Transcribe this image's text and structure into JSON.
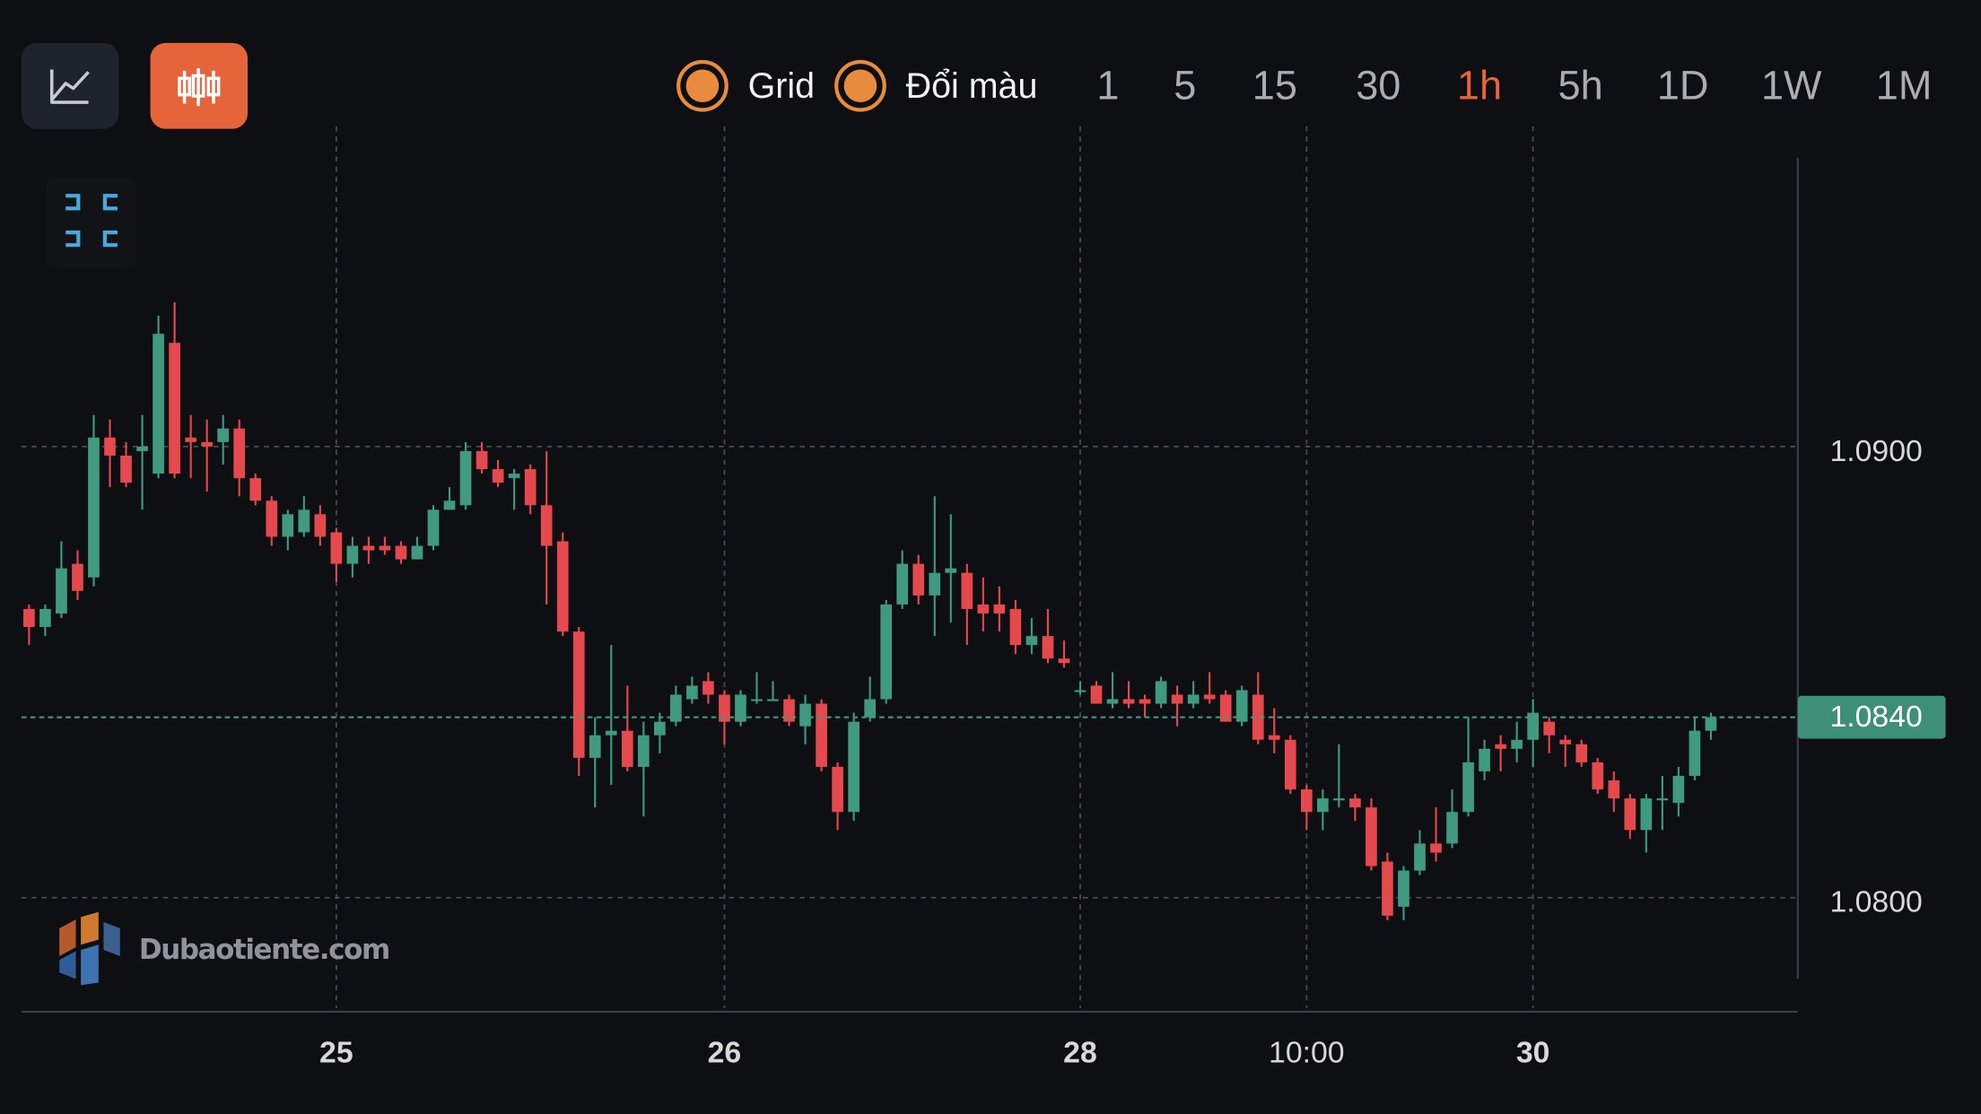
{
  "toolbar": {
    "toggles": [
      "Grid",
      "Đổi màu"
    ],
    "timeframes": [
      "1",
      "5",
      "15",
      "30",
      "1h",
      "5h",
      "1D",
      "1W",
      "1M"
    ],
    "active_timeframe": "1h"
  },
  "watermark": "Dubaotiente.com",
  "chart_data": {
    "type": "candlestick",
    "categories": [
      null,
      null,
      null,
      null,
      null,
      null,
      null,
      null,
      null,
      null,
      null,
      null,
      null,
      null,
      null,
      null,
      null,
      null,
      null,
      "25",
      null,
      null,
      null,
      null,
      null,
      null,
      null,
      null,
      null,
      null,
      null,
      null,
      null,
      null,
      null,
      null,
      null,
      null,
      null,
      null,
      null,
      null,
      null,
      "26",
      null,
      null,
      null,
      null,
      null,
      null,
      null,
      null,
      null,
      null,
      null,
      null,
      null,
      null,
      null,
      null,
      null,
      null,
      null,
      null,
      null,
      "28",
      null,
      null,
      null,
      null,
      null,
      null,
      null,
      null,
      null,
      null,
      null,
      null,
      null,
      "10:00",
      null,
      null,
      null,
      null,
      null,
      null,
      null,
      null,
      null,
      null,
      null,
      null,
      null,
      "30",
      null,
      null,
      null,
      null,
      null,
      null,
      null,
      null,
      null,
      null,
      null
    ],
    "open": [
      1.0864,
      1.086,
      1.0863,
      1.0874,
      1.0871,
      1.0902,
      1.0898,
      1.0899,
      1.0894,
      1.0923,
      1.0902,
      1.0901,
      1.0901,
      1.0904,
      1.0893,
      1.0888,
      1.088,
      1.0881,
      1.0885,
      1.0881,
      1.0874,
      1.0878,
      1.0878,
      1.0878,
      1.0875,
      1.0878,
      1.0886,
      1.0887,
      1.0899,
      1.0895,
      1.0893,
      1.0895,
      1.0887,
      1.0879,
      1.0859,
      1.0831,
      1.0836,
      1.0837,
      1.0829,
      1.0836,
      1.0839,
      1.0844,
      1.0848,
      1.0845,
      1.0839,
      1.0844,
      1.0844,
      1.0844,
      1.0838,
      1.0843,
      1.0829,
      1.0819,
      1.084,
      1.0844,
      1.0865,
      1.0874,
      1.0867,
      1.0872,
      1.0872,
      1.0865,
      1.0865,
      1.0864,
      1.0856,
      1.0858,
      1.0853,
      1.0846,
      1.0847,
      1.0843,
      1.0844,
      1.0844,
      1.0843,
      1.0845,
      1.0843,
      1.0845,
      1.0845,
      1.0839,
      1.0845,
      1.0836,
      1.0835,
      1.0824,
      1.0819,
      1.0822,
      1.0822,
      1.082,
      1.0808,
      1.0798,
      1.0806,
      1.0812,
      1.0812,
      1.0819,
      1.0828,
      1.0834,
      1.0833,
      1.0835,
      1.0839,
      1.0835,
      1.0834,
      1.083,
      1.0826,
      1.0822,
      1.0815,
      1.0822,
      1.0821,
      1.0827,
      1.0837
    ],
    "high": [
      1.0865,
      1.0865,
      1.0879,
      1.0877,
      1.0907,
      1.0906,
      1.0901,
      1.0907,
      1.0929,
      1.0932,
      1.0907,
      1.0906,
      1.0907,
      1.0906,
      1.0894,
      1.0889,
      1.0886,
      1.0889,
      1.0887,
      1.0882,
      1.088,
      1.088,
      1.088,
      1.0879,
      1.088,
      1.0887,
      1.0891,
      1.0901,
      1.0901,
      1.0897,
      1.0895,
      1.0896,
      1.0899,
      1.0881,
      1.086,
      1.084,
      1.0856,
      1.0847,
      1.0839,
      1.0841,
      1.0847,
      1.0849,
      1.085,
      1.0846,
      1.0846,
      1.085,
      1.0848,
      1.0845,
      1.0845,
      1.0844,
      1.083,
      1.0841,
      1.0849,
      1.0866,
      1.0877,
      1.0876,
      1.0889,
      1.0885,
      1.0874,
      1.0871,
      1.0869,
      1.0866,
      1.0862,
      1.0864,
      1.0857,
      1.0848,
      1.0848,
      1.085,
      1.0848,
      1.0845,
      1.0849,
      1.0847,
      1.0848,
      1.085,
      1.0846,
      1.0847,
      1.085,
      1.0842,
      1.0836,
      1.0825,
      1.0824,
      1.0834,
      1.0823,
      1.0822,
      1.081,
      1.0807,
      1.0815,
      1.082,
      1.0824,
      1.084,
      1.0835,
      1.0836,
      1.0839,
      1.0844,
      1.084,
      1.0836,
      1.0835,
      1.0831,
      1.0828,
      1.0823,
      1.0823,
      1.0827,
      1.0829,
      1.084,
      1.0841
    ],
    "low": [
      1.0856,
      1.0858,
      1.0862,
      1.0866,
      1.0869,
      1.0891,
      1.0891,
      1.0886,
      1.0893,
      1.0893,
      1.0893,
      1.089,
      1.0896,
      1.0889,
      1.0887,
      1.0878,
      1.0877,
      1.088,
      1.0878,
      1.087,
      1.0871,
      1.0874,
      1.0876,
      1.0874,
      1.0875,
      1.0877,
      1.0886,
      1.0886,
      1.0894,
      1.0891,
      1.0886,
      1.0885,
      1.0865,
      1.0858,
      1.0827,
      1.082,
      1.0825,
      1.0828,
      1.0818,
      1.0832,
      1.0838,
      1.0843,
      1.0843,
      1.0834,
      1.0838,
      1.0843,
      1.0844,
      1.0838,
      1.0834,
      1.0828,
      1.0815,
      1.0817,
      1.0839,
      1.0843,
      1.0864,
      1.0865,
      1.0858,
      1.0861,
      1.0856,
      1.0859,
      1.0859,
      1.0854,
      1.0854,
      1.0852,
      1.0851,
      1.0845,
      1.0843,
      1.0842,
      1.0842,
      1.084,
      1.0842,
      1.0838,
      1.0842,
      1.0843,
      1.0839,
      1.0838,
      1.0834,
      1.0832,
      1.0823,
      1.0815,
      1.0815,
      1.082,
      1.0817,
      1.0806,
      1.0795,
      1.0795,
      1.0805,
      1.0808,
      1.0811,
      1.0818,
      1.0826,
      1.0828,
      1.083,
      1.0829,
      1.0832,
      1.0829,
      1.0829,
      1.0823,
      1.0819,
      1.0813,
      1.081,
      1.0815,
      1.0818,
      1.0826,
      1.0835
    ],
    "close": [
      1.086,
      1.0864,
      1.0873,
      1.0868,
      1.0902,
      1.0898,
      1.0892,
      1.09,
      1.0925,
      1.0894,
      1.0901,
      1.09,
      1.0904,
      1.0893,
      1.0888,
      1.088,
      1.0885,
      1.0886,
      1.088,
      1.0874,
      1.0878,
      1.0877,
      1.0877,
      1.0875,
      1.0878,
      1.0886,
      1.0888,
      1.0899,
      1.0895,
      1.0892,
      1.0894,
      1.0887,
      1.0878,
      1.0859,
      1.0831,
      1.0836,
      1.0837,
      1.0829,
      1.0836,
      1.0839,
      1.0845,
      1.0847,
      1.0845,
      1.0839,
      1.0845,
      1.0844,
      1.0844,
      1.0839,
      1.0843,
      1.0829,
      1.0819,
      1.0839,
      1.0844,
      1.0865,
      1.0874,
      1.0867,
      1.0872,
      1.0873,
      1.0864,
      1.0863,
      1.0863,
      1.0856,
      1.0858,
      1.0853,
      1.0852,
      1.0846,
      1.0843,
      1.0844,
      1.0843,
      1.0843,
      1.0848,
      1.0843,
      1.0845,
      1.0844,
      1.0839,
      1.0846,
      1.0835,
      1.0835,
      1.0824,
      1.0819,
      1.0822,
      1.0822,
      1.082,
      1.0807,
      1.0796,
      1.0806,
      1.0812,
      1.081,
      1.0819,
      1.083,
      1.0833,
      1.0833,
      1.0835,
      1.0841,
      1.0836,
      1.0834,
      1.083,
      1.0824,
      1.0822,
      1.0815,
      1.0822,
      1.0822,
      1.0827,
      1.0837,
      1.084
    ],
    "up_color": "#3f9a80",
    "down_color": "#e5484d",
    "ylim": [
      1.0775,
      1.0971
    ],
    "yticks": [
      {
        "value": 1.09,
        "label": "1.0900"
      },
      {
        "value": 1.08,
        "label": "1.0800"
      }
    ],
    "last_price": {
      "value": 1.084,
      "label": "1.0840"
    },
    "grid": true
  }
}
